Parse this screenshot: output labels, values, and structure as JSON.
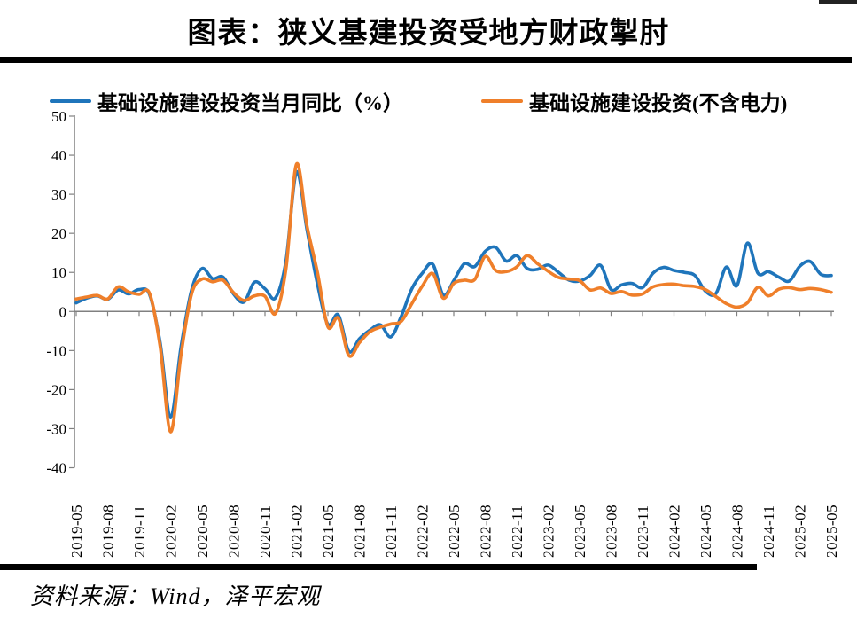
{
  "header": {
    "title": "图表：狭义基建投资受地方财政掣肘"
  },
  "footer": {
    "source": "资料来源：Wind，泽平宏观"
  },
  "chart_data": {
    "type": "line",
    "title": "图表：狭义基建投资受地方财政掣肘",
    "xlabel": "",
    "ylabel": "",
    "ylim": [
      -40,
      50
    ],
    "grid": false,
    "legend_position": "top",
    "axis_color": "#808080",
    "y_ticks": [
      50,
      40,
      30,
      20,
      10,
      0,
      -10,
      -20,
      -30,
      -40
    ],
    "points_per_label": 3,
    "x_tick_labels": [
      "2019-05",
      "2019-08",
      "2019-11",
      "2020-02",
      "2020-05",
      "2020-08",
      "2020-11",
      "2021-02",
      "2021-05",
      "2021-08",
      "2021-11",
      "2022-02",
      "2022-05",
      "2022-08",
      "2022-11",
      "2023-02",
      "2023-05",
      "2023-08",
      "2023-11",
      "2024-02",
      "2024-05",
      "2024-08",
      "2024-11",
      "2025-02",
      "2025-05"
    ],
    "series": [
      {
        "name": "基础设施建设投资当月同比（%）",
        "color": "#1F75BB",
        "values": [
          2.2,
          3.4,
          4.0,
          3.1,
          5.5,
          4.5,
          5.6,
          4.3,
          -8.0,
          -27.0,
          -9.0,
          5.5,
          11.0,
          8.4,
          8.8,
          4.5,
          2.4,
          7.5,
          5.8,
          3.5,
          13.0,
          35.7,
          21.0,
          7.0,
          -3.3,
          -0.9,
          -10.2,
          -7.0,
          -4.8,
          -3.4,
          -6.5,
          -1.2,
          5.8,
          9.8,
          12.1,
          4.2,
          7.9,
          12.2,
          11.5,
          15.4,
          16.4,
          12.9,
          14.3,
          11.0,
          10.8,
          11.9,
          10.0,
          8.0,
          7.8,
          9.2,
          11.8,
          5.6,
          6.8,
          7.2,
          6.1,
          9.8,
          11.3,
          10.5,
          10.0,
          9.2,
          5.2,
          4.6,
          11.4,
          6.6,
          17.5,
          9.8,
          10.2,
          8.8,
          7.8,
          11.6,
          12.8,
          9.5,
          9.2
        ]
      },
      {
        "name": "基础设施建设投资(不含电力)",
        "color": "#EF7F2A",
        "values": [
          3.2,
          3.7,
          4.1,
          3.2,
          6.3,
          5.0,
          4.4,
          4.6,
          -9.0,
          -30.8,
          -11.0,
          4.5,
          8.3,
          7.6,
          8.0,
          4.8,
          2.8,
          4.0,
          3.9,
          -0.5,
          11.0,
          37.7,
          22.0,
          10.0,
          -3.9,
          -1.7,
          -11.3,
          -8.0,
          -5.2,
          -4.0,
          -3.2,
          -2.5,
          2.0,
          6.5,
          9.7,
          3.4,
          7.2,
          8.0,
          8.2,
          14.1,
          10.5,
          10.2,
          11.4,
          14.3,
          12.2,
          10.3,
          8.7,
          8.3,
          7.9,
          5.5,
          6.0,
          4.6,
          5.1,
          4.2,
          4.5,
          6.3,
          6.9,
          7.0,
          6.6,
          6.4,
          5.6,
          3.8,
          2.0,
          1.1,
          2.2,
          6.2,
          4.0,
          5.7,
          6.1,
          5.6,
          5.9,
          5.6,
          4.9
        ]
      }
    ]
  }
}
